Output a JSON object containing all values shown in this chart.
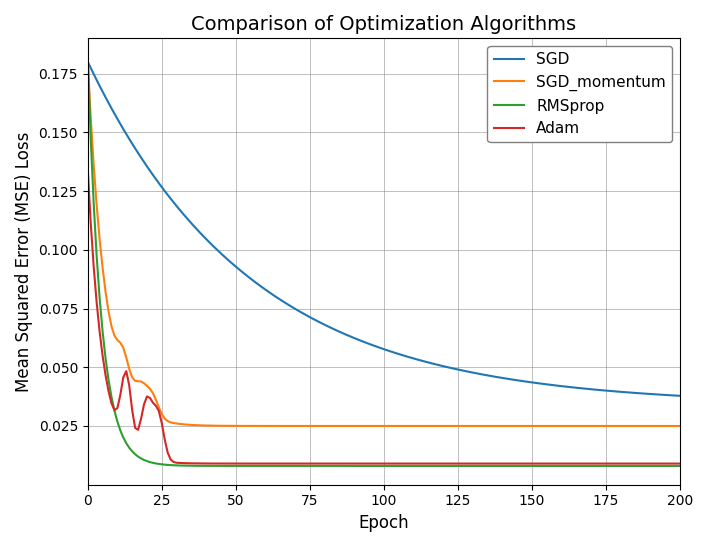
{
  "title": "Comparison of Optimization Algorithms",
  "xlabel": "Epoch",
  "ylabel": "Mean Squared Error (MSE) Loss",
  "xlim": [
    0,
    200
  ],
  "ylim": [
    0,
    0.19
  ],
  "yticks": [
    0.025,
    0.05,
    0.075,
    0.1,
    0.125,
    0.15,
    0.175
  ],
  "xticks": [
    0,
    25,
    50,
    75,
    100,
    125,
    150,
    175,
    200
  ],
  "colors": {
    "SGD": "#1f77b4",
    "SGD_momentum": "#ff7f0e",
    "RMSprop": "#2ca02c",
    "Adam": "#d62728"
  },
  "figsize": [
    7.08,
    5.47
  ],
  "dpi": 100
}
